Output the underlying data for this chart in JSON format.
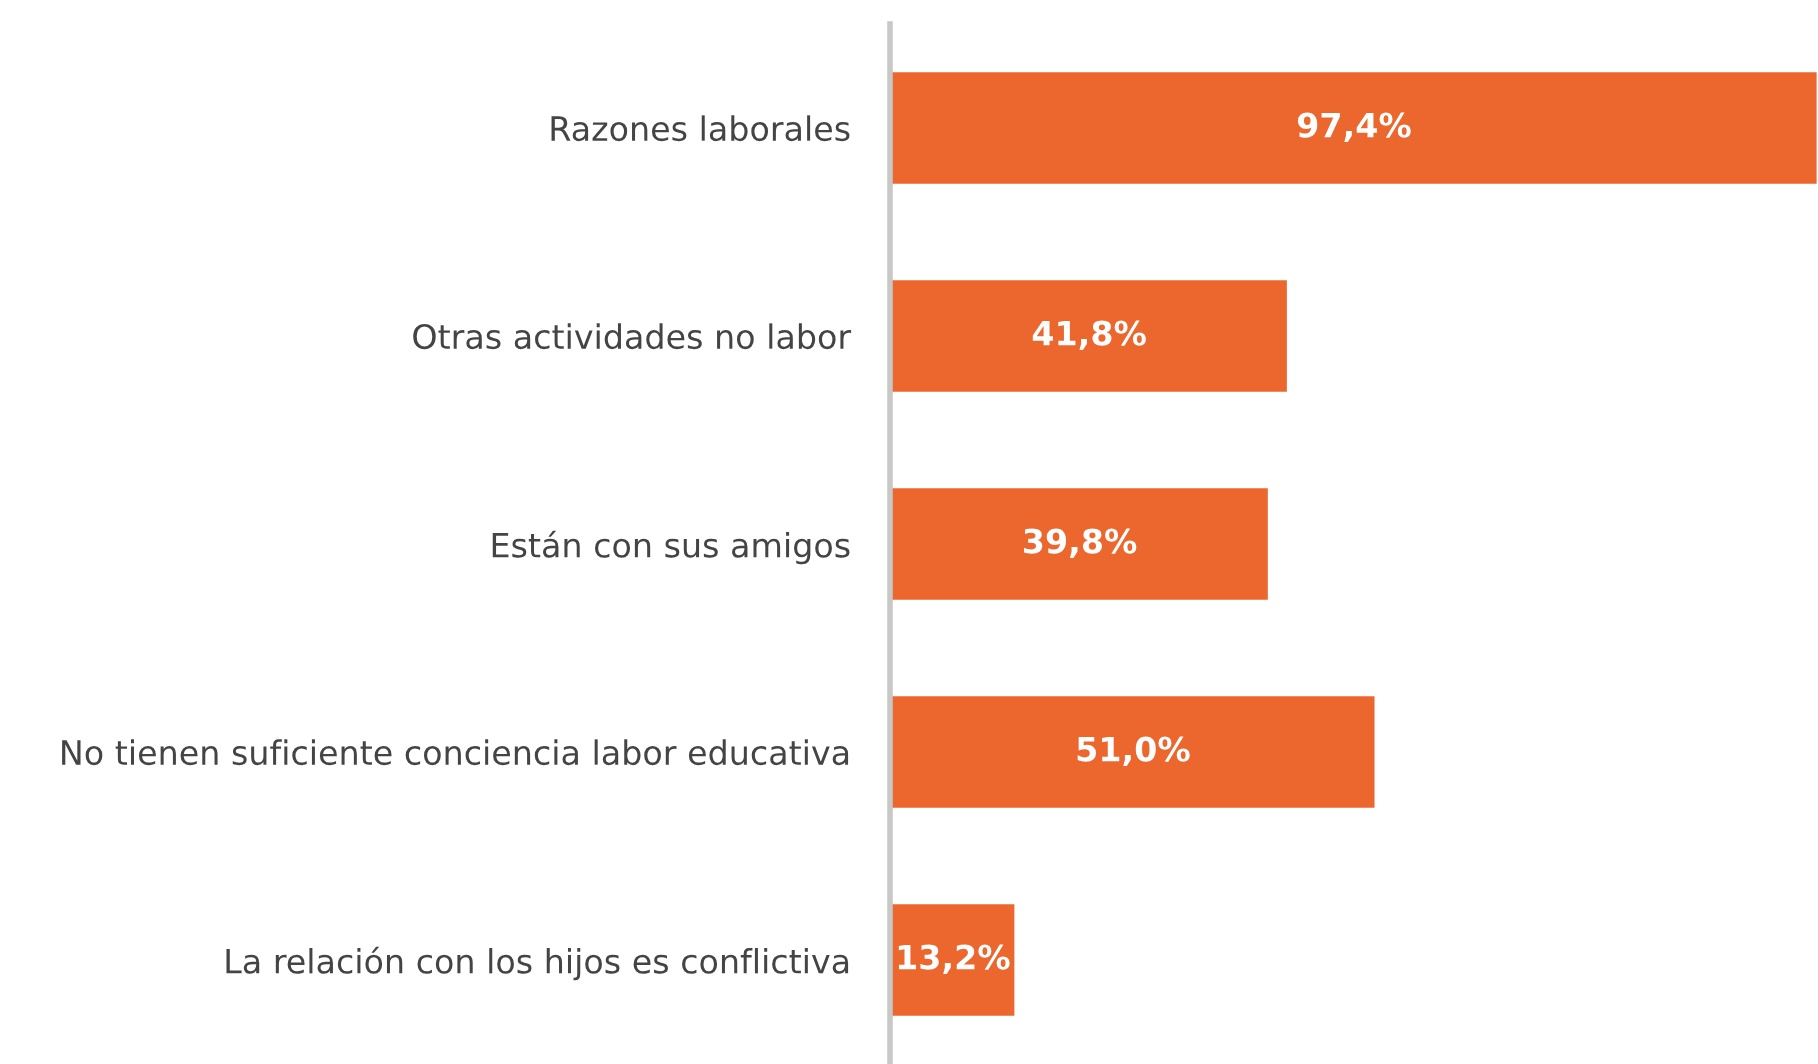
{
  "chart_data": {
    "type": "bar",
    "orientation": "horizontal",
    "categories": [
      "Razones laborales",
      "Otras actividades no labor",
      "Están con sus amigos",
      "No tienen suficiente conciencia labor educativa",
      "La relación con los hijos es conflictiva"
    ],
    "values": [
      97.4,
      41.8,
      39.8,
      51.0,
      13.2
    ],
    "value_labels": [
      "97,4%",
      "41,8%",
      "39,8%",
      "51,0%",
      "13,2%"
    ],
    "color": "#ec672d",
    "grid": false,
    "legend": false
  }
}
